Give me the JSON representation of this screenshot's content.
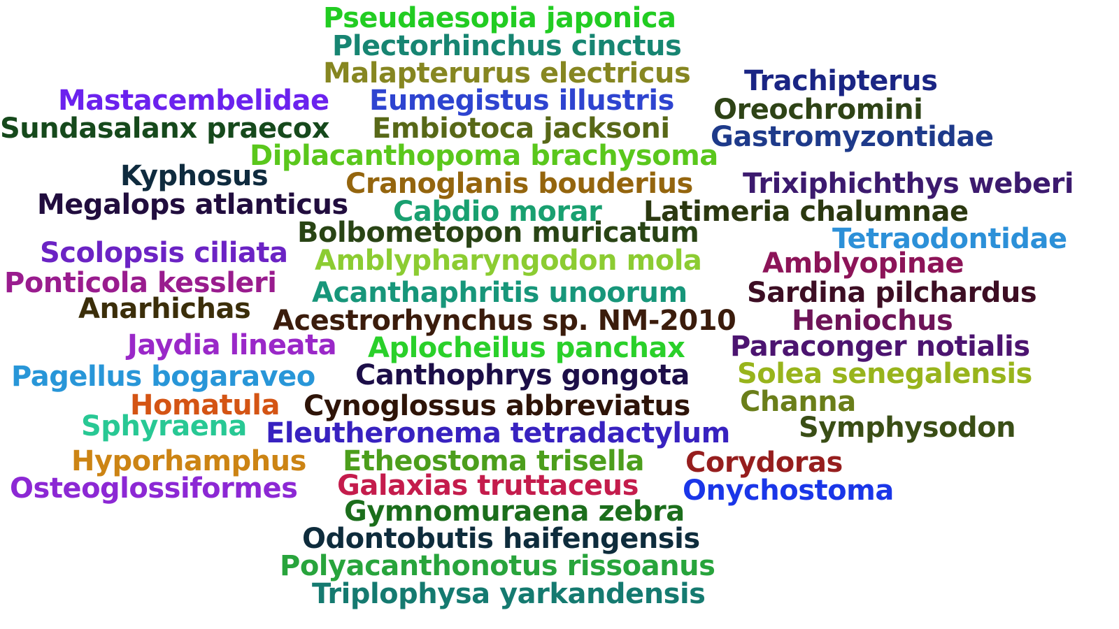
{
  "words": [
    {
      "text": "Pseudaesopia japonica",
      "color": "#22cc22"
    },
    {
      "text": "Plectorhinchus cinctus",
      "color": "#178572"
    },
    {
      "text": "Malapterurus electricus",
      "color": "#868621"
    },
    {
      "text": "Trachipterus",
      "color": "#1a2584"
    },
    {
      "text": "Mastacembelidae",
      "color": "#6b22ee"
    },
    {
      "text": "Eumegistus illustris",
      "color": "#2e44d0"
    },
    {
      "text": "Oreochromini",
      "color": "#2e4316"
    },
    {
      "text": "Sundasalanx praecox",
      "color": "#16491c"
    },
    {
      "text": "Embiotoca jacksoni",
      "color": "#586818"
    },
    {
      "text": "Gastromyzontidae",
      "color": "#1e3a8a"
    },
    {
      "text": "Diplacanthopoma brachysoma",
      "color": "#5ac71c"
    },
    {
      "text": "Kyphosus",
      "color": "#0f2b3e"
    },
    {
      "text": "Cranoglanis bouderius",
      "color": "#94650e"
    },
    {
      "text": "Trixiphichthys weberi",
      "color": "#3c1a6e"
    },
    {
      "text": "Megalops atlanticus",
      "color": "#210d3e"
    },
    {
      "text": "Cabdio morar",
      "color": "#19a070"
    },
    {
      "text": "Latimeria chalumnae",
      "color": "#2b3810"
    },
    {
      "text": "Bolbometopon muricatum",
      "color": "#294415"
    },
    {
      "text": "Tetraodontidae",
      "color": "#2c90d8"
    },
    {
      "text": "Scolopsis ciliata",
      "color": "#6b23c4"
    },
    {
      "text": "Amblypharyngodon mola",
      "color": "#8ccc32"
    },
    {
      "text": "Amblyopinae",
      "color": "#8c1458"
    },
    {
      "text": "Ponticola kessleri",
      "color": "#991c8e"
    },
    {
      "text": "Acanthaphritis unoorum",
      "color": "#17967a"
    },
    {
      "text": "Sardina pilchardus",
      "color": "#3d0e24"
    },
    {
      "text": "Anarhichas",
      "color": "#3b2e0a"
    },
    {
      "text": "Acestrorhynchus sp. NM-2010",
      "color": "#3b1c0c"
    },
    {
      "text": "Heniochus",
      "color": "#6e1458"
    },
    {
      "text": "Jaydia lineata",
      "color": "#9a28c8"
    },
    {
      "text": "Aplocheilus panchax",
      "color": "#2ad02a"
    },
    {
      "text": "Paraconger notialis",
      "color": "#4c1470"
    },
    {
      "text": "Pagellus bogaraveo",
      "color": "#2896d8"
    },
    {
      "text": "Canthophrys gongota",
      "color": "#1c0e48"
    },
    {
      "text": "Solea senegalensis",
      "color": "#98b41c"
    },
    {
      "text": "Homatula",
      "color": "#d45414"
    },
    {
      "text": "Cynoglossus abbreviatus",
      "color": "#2e1408"
    },
    {
      "text": "Channa",
      "color": "#6a7e1a"
    },
    {
      "text": "Sphyraena",
      "color": "#28c894"
    },
    {
      "text": "Eleutheronema tetradactylum",
      "color": "#3822c0"
    },
    {
      "text": "Symphysodon",
      "color": "#3a4e16"
    },
    {
      "text": "Hyporhamphus",
      "color": "#cc8414"
    },
    {
      "text": "Etheostoma trisella",
      "color": "#4c9e1c"
    },
    {
      "text": "Corydoras",
      "color": "#961e1e"
    },
    {
      "text": "Osteoglossiformes",
      "color": "#8c28d4"
    },
    {
      "text": "Galaxias truttaceus",
      "color": "#c41c4c"
    },
    {
      "text": "Onychostoma",
      "color": "#1a36e8"
    },
    {
      "text": "Gymnomuraena zebra",
      "color": "#1c6e1c"
    },
    {
      "text": "Odontobutis haifengensis",
      "color": "#0e2c3c"
    },
    {
      "text": "Polyacanthonotus rissoanus",
      "color": "#28a43c"
    },
    {
      "text": "Triplophysa yarkandensis",
      "color": "#157a70"
    }
  ]
}
